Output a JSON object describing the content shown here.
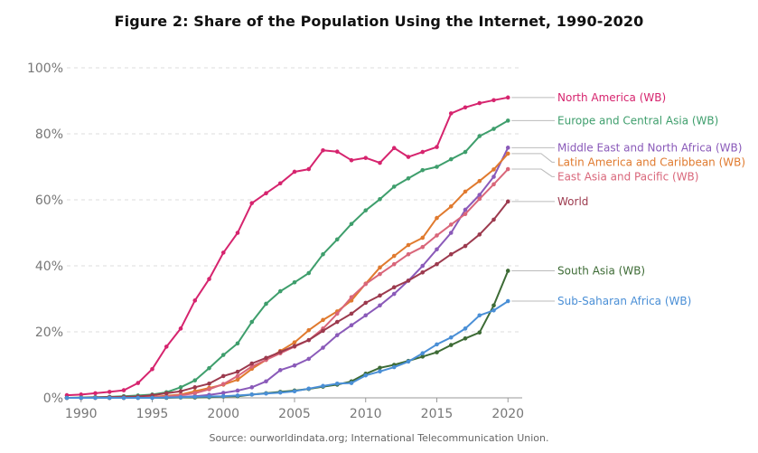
{
  "title": "Figure 2: Share of the Population Using the Internet, 1990-2020",
  "source": "Source: ourworldindata.org; International Telecommunication Union.",
  "chart_data": {
    "type": "line",
    "title": "Figure 2: Share of the Population Using the Internet, 1990-2020",
    "xlabel": "",
    "ylabel": "",
    "xlim": [
      1989,
      2021
    ],
    "ylim": [
      0,
      100
    ],
    "grid": true,
    "legend": "right (inline end labels)",
    "x": [
      1989,
      1990,
      1991,
      1992,
      1993,
      1994,
      1995,
      1996,
      1997,
      1998,
      1999,
      2000,
      2001,
      2002,
      2003,
      2004,
      2005,
      2006,
      2007,
      2008,
      2009,
      2010,
      2011,
      2012,
      2013,
      2014,
      2015,
      2016,
      2017,
      2018,
      2019,
      2020
    ],
    "xticks": [
      1990,
      1995,
      2000,
      2005,
      2010,
      2015,
      2020
    ],
    "xtick_labels": [
      "1990",
      "1995",
      "2000",
      "2005",
      "2010",
      "2015",
      "2020"
    ],
    "yticks": [
      0,
      20,
      40,
      60,
      80,
      100
    ],
    "ytick_labels": [
      "0%",
      "20%",
      "40%",
      "60%",
      "80%",
      "100%"
    ],
    "series": [
      {
        "name": "North America (WB)",
        "color": "#d6246e",
        "values": [
          0.8,
          1.0,
          1.4,
          1.8,
          2.3,
          4.5,
          8.7,
          15.5,
          21,
          29.5,
          36,
          44,
          50,
          59,
          62,
          65,
          68.5,
          69.3,
          75,
          74.6,
          72,
          72.7,
          71.2,
          75.7,
          73,
          74.5,
          76,
          86.2,
          88,
          89.3,
          90.2,
          91
        ]
      },
      {
        "name": "Europe and Central Asia (WB)",
        "color": "#3e9e6c",
        "values": [
          0,
          0.1,
          0.2,
          0.3,
          0.5,
          0.7,
          1,
          1.7,
          3.2,
          5.3,
          9,
          13,
          16.5,
          23,
          28.5,
          32.3,
          35,
          37.8,
          43.5,
          48,
          52.7,
          56.8,
          60.2,
          64,
          66.5,
          69,
          70,
          72.3,
          74.5,
          79.3,
          81.5,
          84
        ]
      },
      {
        "name": "Middle East and North Africa (WB)",
        "color": "#8a5ab9",
        "values": [
          0,
          0,
          0,
          0,
          0,
          0,
          0.1,
          0.2,
          0.3,
          0.5,
          0.9,
          1.5,
          2.2,
          3.2,
          5,
          8.4,
          9.8,
          11.8,
          15.2,
          19,
          22,
          25,
          28,
          31.5,
          35.5,
          40,
          45,
          50,
          57,
          61.5,
          67,
          75.8
        ]
      },
      {
        "name": "Latin America and Caribbean (WB)",
        "color": "#e07a2e",
        "values": [
          0,
          0,
          0,
          0,
          0,
          0.1,
          0.3,
          0.6,
          1,
          2,
          3,
          4,
          5.5,
          8.8,
          11.5,
          14.2,
          16.8,
          20.5,
          23.6,
          26.2,
          29.5,
          34.6,
          39.5,
          43,
          46.3,
          48.5,
          54.5,
          58,
          62.5,
          65.7,
          69.2,
          74
        ]
      },
      {
        "name": "East Asia and Pacific (WB)",
        "color": "#d9667a",
        "values": [
          0,
          0,
          0,
          0,
          0,
          0.1,
          0.2,
          0.4,
          0.8,
          1.4,
          2.6,
          4.2,
          6.6,
          9.5,
          11.5,
          13.5,
          15.5,
          17.5,
          21,
          25.5,
          30.5,
          34.5,
          37.5,
          40.5,
          43.5,
          45.7,
          49.2,
          52.5,
          55.7,
          60.3,
          64.7,
          69.3
        ]
      },
      {
        "name": "World",
        "color": "#9c3a4e",
        "values": [
          0,
          0,
          0.1,
          0.2,
          0.3,
          0.4,
          0.8,
          1.4,
          2,
          3.2,
          4.3,
          6.6,
          7.9,
          10.4,
          12.1,
          13.9,
          15.7,
          17.5,
          20.3,
          23,
          25.5,
          28.8,
          31,
          33.5,
          35.5,
          38,
          40.5,
          43.5,
          46,
          49.5,
          54,
          59.5
        ]
      },
      {
        "name": "South Asia (WB)",
        "color": "#3d6b35",
        "values": [
          0,
          0,
          0,
          0,
          0,
          0,
          0,
          0,
          0.1,
          0.1,
          0.2,
          0.4,
          0.5,
          1,
          1.4,
          1.8,
          2.2,
          2.7,
          3.4,
          4,
          5,
          7.3,
          9.1,
          10,
          11.2,
          12.5,
          13.8,
          16,
          18,
          19.8,
          28,
          38.5
        ]
      },
      {
        "name": "Sub-Saharan Africa (WB)",
        "color": "#4a8fd6",
        "values": [
          0,
          0,
          0,
          0,
          0,
          0,
          0,
          0.1,
          0.2,
          0.3,
          0.4,
          0.5,
          0.7,
          1,
          1.3,
          1.6,
          2,
          2.8,
          3.6,
          4.3,
          4.5,
          6.8,
          8,
          9.3,
          11,
          13.5,
          16.2,
          18.3,
          21,
          25,
          26.5,
          29.3
        ]
      }
    ]
  }
}
